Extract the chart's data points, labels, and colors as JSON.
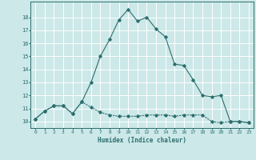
{
  "xlabel": "Humidex (Indice chaleur)",
  "x_values": [
    0,
    1,
    2,
    3,
    4,
    5,
    6,
    7,
    8,
    9,
    10,
    11,
    12,
    13,
    14,
    15,
    16,
    17,
    18,
    19,
    20,
    21,
    22,
    23
  ],
  "line1_y": [
    10.2,
    10.8,
    11.2,
    11.2,
    10.6,
    11.5,
    11.1,
    10.7,
    10.5,
    10.4,
    10.4,
    10.4,
    10.5,
    10.5,
    10.5,
    10.4,
    10.5,
    10.5,
    10.5,
    10.0,
    9.9,
    10.0,
    10.0,
    9.9
  ],
  "line2_y": [
    10.2,
    10.8,
    11.2,
    11.2,
    10.6,
    11.5,
    13.0,
    15.0,
    16.3,
    17.8,
    18.6,
    17.7,
    18.0,
    17.1,
    16.5,
    14.4,
    14.3,
    13.2,
    12.0,
    11.9,
    12.0,
    10.0,
    10.0,
    9.9
  ],
  "line_color": "#2d6e6e",
  "bg_color": "#cce8e8",
  "ylim": [
    9.5,
    19.2
  ],
  "xlim": [
    -0.5,
    23.5
  ],
  "yticks": [
    10,
    11,
    12,
    13,
    14,
    15,
    16,
    17,
    18
  ],
  "xticks": [
    0,
    1,
    2,
    3,
    4,
    5,
    6,
    7,
    8,
    9,
    10,
    11,
    12,
    13,
    14,
    15,
    16,
    17,
    18,
    19,
    20,
    21,
    22,
    23
  ]
}
